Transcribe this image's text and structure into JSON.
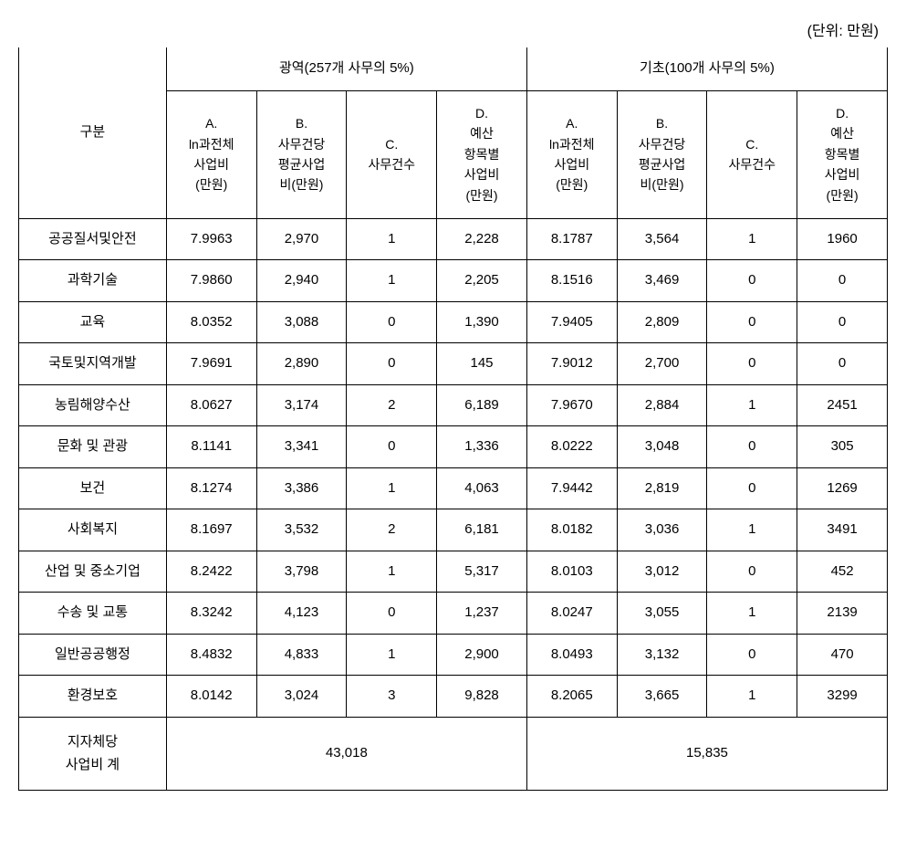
{
  "unit_label": "(단위: 만원)",
  "header": {
    "category": "구분",
    "group1": "광역(257개 사무의 5%)",
    "group2": "기초(100개 사무의 5%)",
    "sub_a": "A.\nln과전체\n사업비\n(만원)",
    "sub_b": "B.\n사무건당\n평균사업\n비(만원)",
    "sub_c": "C.\n사무건수",
    "sub_d": "D.\n예산\n항목별\n사업비\n(만원)"
  },
  "rows": [
    {
      "cat": "공공질서및안전",
      "a1": "7.9963",
      "b1": "2,970",
      "c1": "1",
      "d1": "2,228",
      "a2": "8.1787",
      "b2": "3,564",
      "c2": "1",
      "d2": "1960"
    },
    {
      "cat": "과학기술",
      "a1": "7.9860",
      "b1": "2,940",
      "c1": "1",
      "d1": "2,205",
      "a2": "8.1516",
      "b2": "3,469",
      "c2": "0",
      "d2": "0"
    },
    {
      "cat": "교육",
      "a1": "8.0352",
      "b1": "3,088",
      "c1": "0",
      "d1": "1,390",
      "a2": "7.9405",
      "b2": "2,809",
      "c2": "0",
      "d2": "0"
    },
    {
      "cat": "국토및지역개발",
      "a1": "7.9691",
      "b1": "2,890",
      "c1": "0",
      "d1": "145",
      "a2": "7.9012",
      "b2": "2,700",
      "c2": "0",
      "d2": "0"
    },
    {
      "cat": "농림해양수산",
      "a1": "8.0627",
      "b1": "3,174",
      "c1": "2",
      "d1": "6,189",
      "a2": "7.9670",
      "b2": "2,884",
      "c2": "1",
      "d2": "2451"
    },
    {
      "cat": "문화 및 관광",
      "a1": "8.1141",
      "b1": "3,341",
      "c1": "0",
      "d1": "1,336",
      "a2": "8.0222",
      "b2": "3,048",
      "c2": "0",
      "d2": "305"
    },
    {
      "cat": "보건",
      "a1": "8.1274",
      "b1": "3,386",
      "c1": "1",
      "d1": "4,063",
      "a2": "7.9442",
      "b2": "2,819",
      "c2": "0",
      "d2": "1269"
    },
    {
      "cat": "사회복지",
      "a1": "8.1697",
      "b1": "3,532",
      "c1": "2",
      "d1": "6,181",
      "a2": "8.0182",
      "b2": "3,036",
      "c2": "1",
      "d2": "3491"
    },
    {
      "cat": "산업 및 중소기업",
      "a1": "8.2422",
      "b1": "3,798",
      "c1": "1",
      "d1": "5,317",
      "a2": "8.0103",
      "b2": "3,012",
      "c2": "0",
      "d2": "452"
    },
    {
      "cat": "수송 및 교통",
      "a1": "8.3242",
      "b1": "4,123",
      "c1": "0",
      "d1": "1,237",
      "a2": "8.0247",
      "b2": "3,055",
      "c2": "1",
      "d2": "2139"
    },
    {
      "cat": "일반공공행정",
      "a1": "8.4832",
      "b1": "4,833",
      "c1": "1",
      "d1": "2,900",
      "a2": "8.0493",
      "b2": "3,132",
      "c2": "0",
      "d2": "470"
    },
    {
      "cat": "환경보호",
      "a1": "8.0142",
      "b1": "3,024",
      "c1": "3",
      "d1": "9,828",
      "a2": "8.2065",
      "b2": "3,665",
      "c2": "1",
      "d2": "3299"
    }
  ],
  "total": {
    "label": "지자체당\n사업비 계",
    "val1": "43,018",
    "val2": "15,835"
  }
}
